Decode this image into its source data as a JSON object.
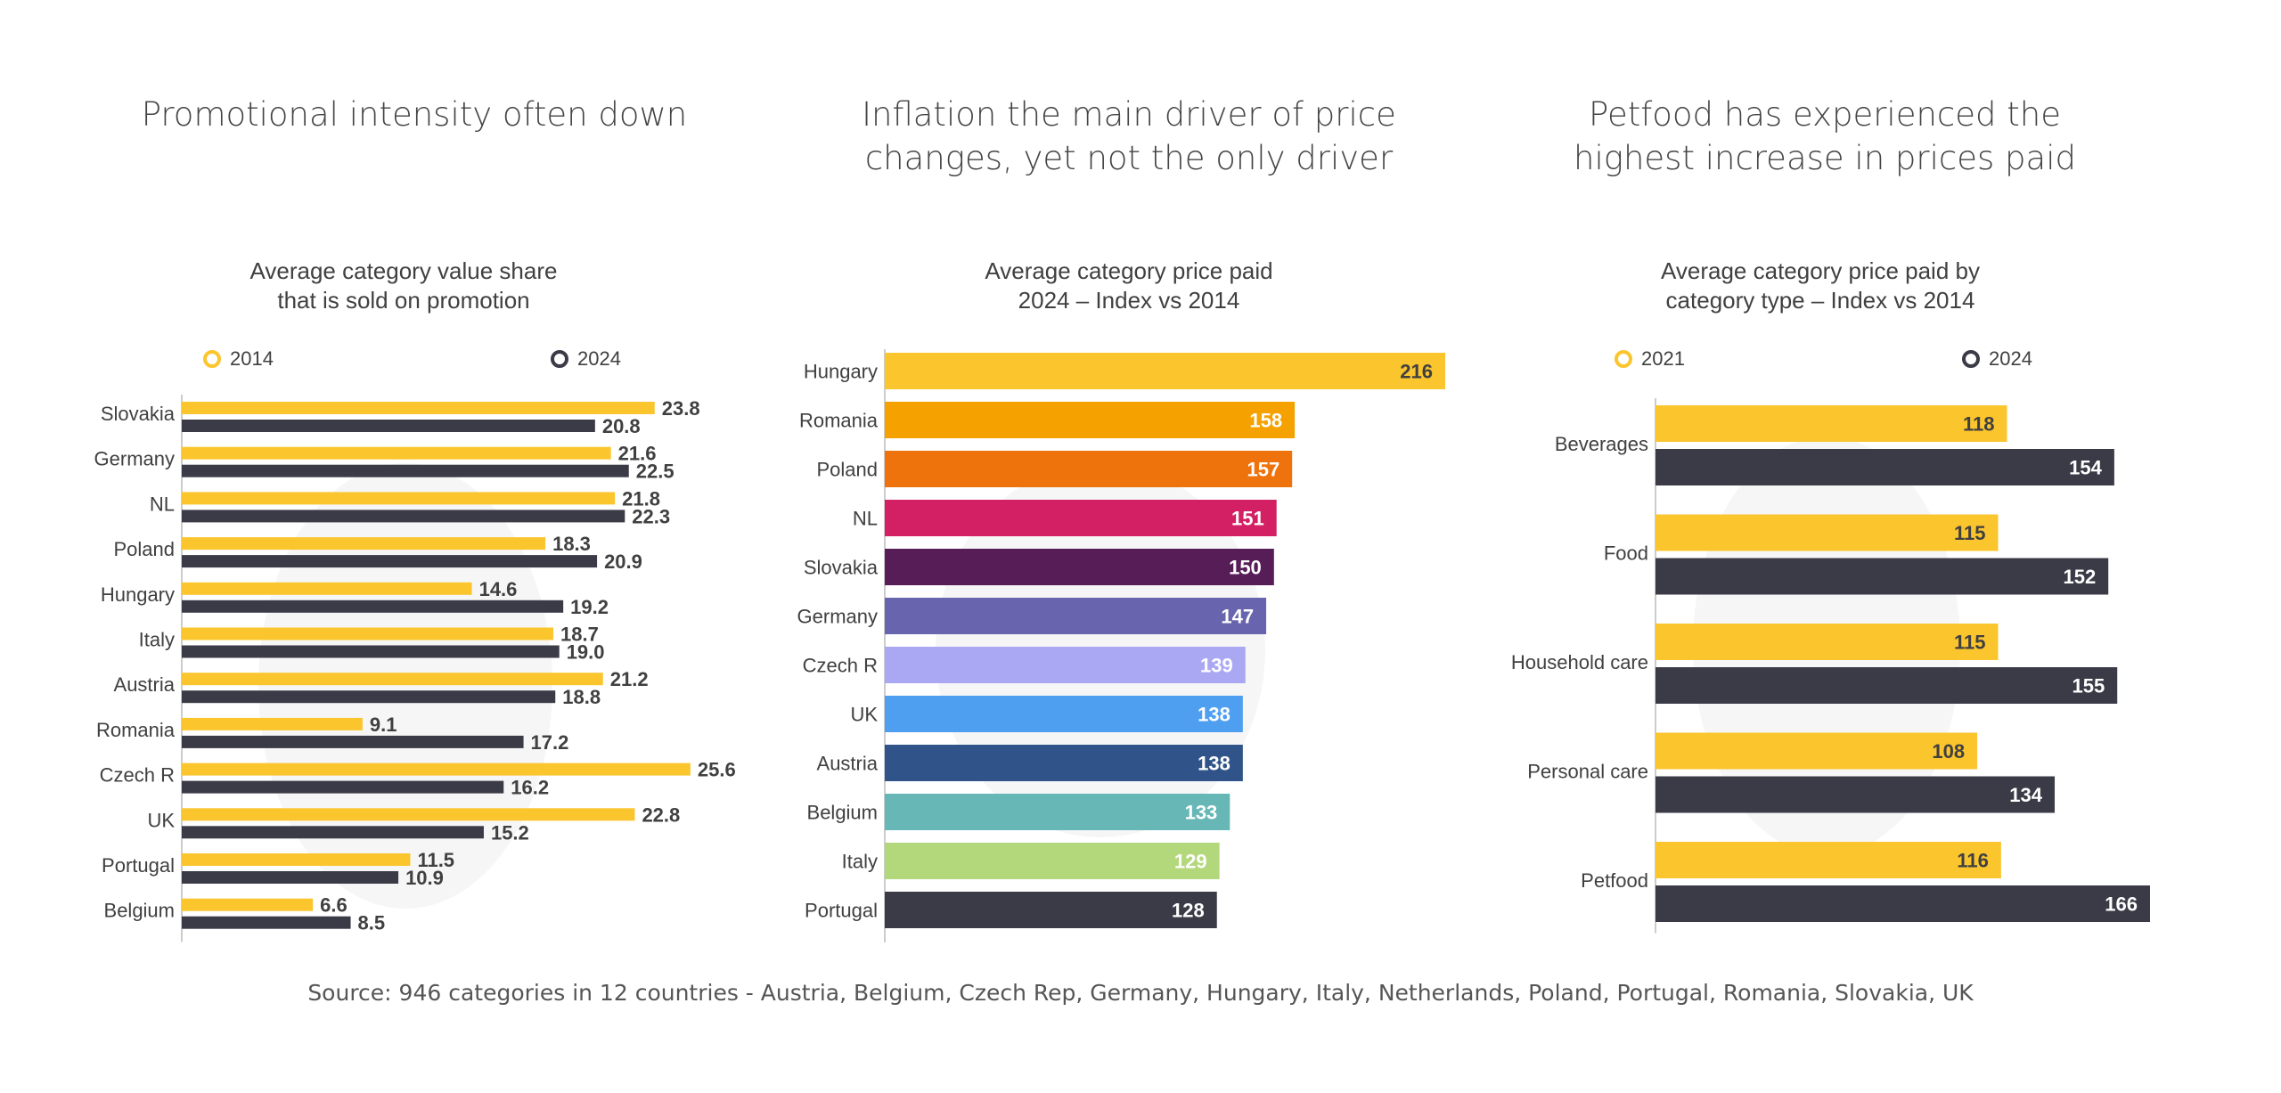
{
  "colors": {
    "yellow": "#FBC52E",
    "dark": "#3B3B47"
  },
  "chart_data": [
    {
      "type": "bar",
      "orientation": "horizontal",
      "title": "Promotional intensity often down",
      "subtitle": [
        "Average category value share",
        "that is sold on promotion"
      ],
      "categories": [
        "Slovakia",
        "Germany",
        "NL",
        "Poland",
        "Hungary",
        "Italy",
        "Austria",
        "Romania",
        "Czech R",
        "UK",
        "Portugal",
        "Belgium"
      ],
      "series": [
        {
          "name": "2014",
          "color": "#FBC52E",
          "values": [
            23.8,
            21.6,
            21.8,
            18.3,
            14.6,
            18.7,
            21.2,
            9.1,
            25.6,
            22.8,
            11.5,
            6.6
          ]
        },
        {
          "name": "2024",
          "color": "#3B3B47",
          "values": [
            20.8,
            22.5,
            22.3,
            20.9,
            19.2,
            19.0,
            18.8,
            17.2,
            16.2,
            15.2,
            10.9,
            8.5
          ]
        }
      ],
      "xlim": [
        0,
        26
      ],
      "legend": "top",
      "grid": false
    },
    {
      "type": "bar",
      "orientation": "horizontal",
      "title": [
        "Inflation the main driver of price",
        "changes, yet not the only driver"
      ],
      "subtitle": [
        "Average category price paid",
        "2024 – Index vs 2014"
      ],
      "categories": [
        "Hungary",
        "Romania",
        "Poland",
        "NL",
        "Slovakia",
        "Germany",
        "Czech R",
        "UK",
        "Austria",
        "Belgium",
        "Italy",
        "Portugal"
      ],
      "values": [
        216,
        158,
        157,
        151,
        150,
        147,
        139,
        138,
        138,
        133,
        129,
        128
      ],
      "bar_colors": [
        "#FBC52E",
        "#F5A100",
        "#EE730C",
        "#D31F63",
        "#561D57",
        "#6964AE",
        "#ABA8F3",
        "#4F9FF1",
        "#305489",
        "#67B7B7",
        "#B3D77B",
        "#3B3B47"
      ],
      "label_colors": [
        "#404040",
        "#ffffff",
        "#ffffff",
        "#ffffff",
        "#ffffff",
        "#ffffff",
        "#ffffff",
        "#ffffff",
        "#ffffff",
        "#ffffff",
        "#ffffff",
        "#ffffff"
      ],
      "xlim": [
        0,
        216
      ],
      "grid": false
    },
    {
      "type": "bar",
      "orientation": "horizontal",
      "title": [
        "Petfood has experienced the",
        "highest increase in prices paid"
      ],
      "subtitle": [
        "Average category price paid by",
        "category type – Index vs 2014"
      ],
      "categories": [
        "Beverages",
        "Food",
        "Household care",
        "Personal care",
        "Petfood"
      ],
      "series": [
        {
          "name": "2021",
          "color": "#FBC52E",
          "values": [
            118,
            115,
            115,
            108,
            116
          ]
        },
        {
          "name": "2024",
          "color": "#3B3B47",
          "values": [
            154,
            152,
            155,
            134,
            166
          ]
        }
      ],
      "xlim": [
        0,
        166
      ],
      "legend": "top",
      "grid": false
    }
  ],
  "source": "Source: 946 categories in 12 countries - Austria, Belgium, Czech Rep, Germany, Hungary, Italy, Netherlands, Poland, Portugal, Romania, Slovakia, UK"
}
